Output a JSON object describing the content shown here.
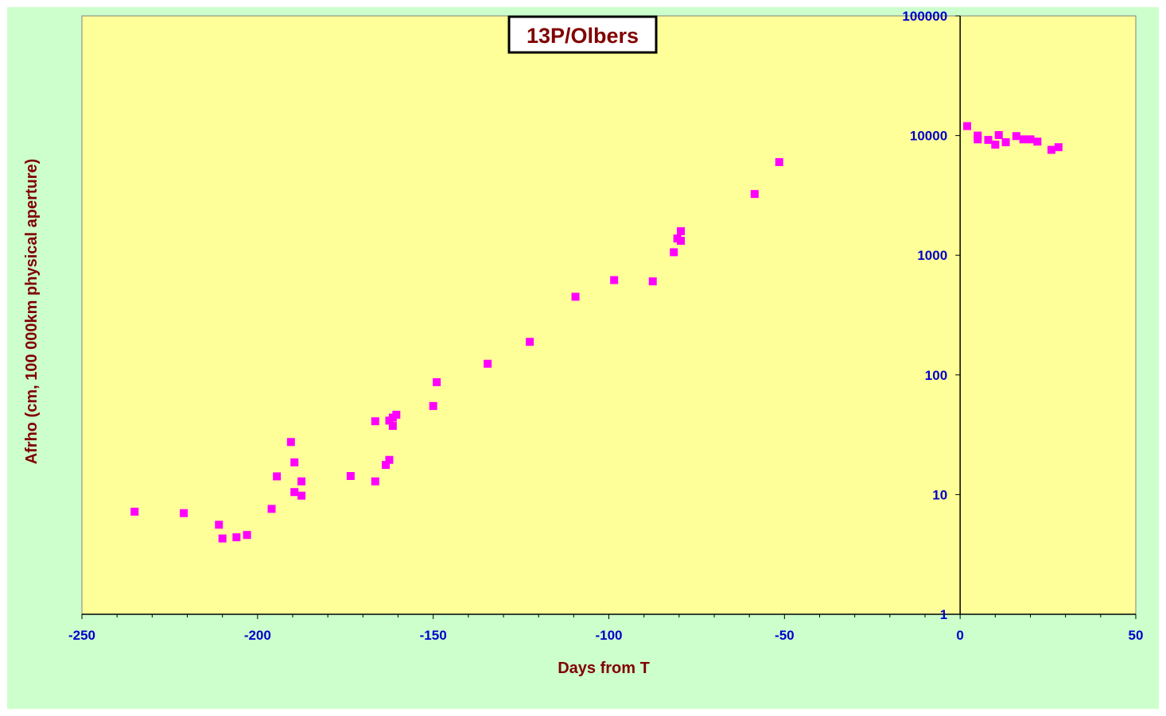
{
  "chart_data": {
    "type": "scatter",
    "title": "13P/Olbers",
    "xlabel": "Days from  T",
    "ylabel": "Afrho  (cm,  100 000km  physical  aperture)",
    "xlim": [
      -250,
      50
    ],
    "ylim": [
      1,
      100000
    ],
    "y_scale": "log",
    "x_ticks": [
      -250,
      -200,
      -150,
      -100,
      -50,
      0,
      50
    ],
    "y_ticks": [
      1,
      10,
      100,
      1000,
      10000,
      100000
    ],
    "x_tick_labels": [
      "-250",
      "-200",
      "-150",
      "-100",
      "-50",
      "0",
      "50"
    ],
    "y_tick_labels": [
      "1",
      "10",
      "100",
      "1000",
      "10000",
      "100000"
    ],
    "grid": false,
    "colors": {
      "background": "#ccffcc",
      "plot_area": "#ffff99",
      "marker": "#ff00ff",
      "tick_labels": "#0000cc",
      "axis_labels": "#800000",
      "title": "#800000"
    },
    "series": [
      {
        "marker": "square",
        "points": [
          [
            -235,
            7.2
          ],
          [
            -221,
            7.0
          ],
          [
            -211,
            5.6
          ],
          [
            -210,
            4.3
          ],
          [
            -206,
            4.4
          ],
          [
            -203,
            4.6
          ],
          [
            -196,
            7.6
          ],
          [
            -194.5,
            14.2
          ],
          [
            -190.5,
            27.5
          ],
          [
            -189.5,
            18.6
          ],
          [
            -189.5,
            10.5
          ],
          [
            -187.5,
            12.9
          ],
          [
            -187.5,
            9.8
          ],
          [
            -173.5,
            14.3
          ],
          [
            -166.5,
            41.0
          ],
          [
            -166.5,
            12.9
          ],
          [
            -163.5,
            17.7
          ],
          [
            -162.5,
            19.5
          ],
          [
            -162.5,
            41.5
          ],
          [
            -161.5,
            37.5
          ],
          [
            -161.5,
            44.0
          ],
          [
            -160.5,
            46.5
          ],
          [
            -150,
            55.0
          ],
          [
            -149,
            87.0
          ],
          [
            -134.5,
            124.0
          ],
          [
            -122.5,
            189.0
          ],
          [
            -109.5,
            450.0
          ],
          [
            -98.5,
            620.0
          ],
          [
            -87.5,
            605.0
          ],
          [
            -81.5,
            1060.0
          ],
          [
            -80.5,
            1380.0
          ],
          [
            -79.5,
            1320.0
          ],
          [
            -79.5,
            1590.0
          ],
          [
            -58.5,
            3250.0
          ],
          [
            -51.5,
            6000.0
          ],
          [
            2,
            12000.0
          ],
          [
            5,
            10000.0
          ],
          [
            5,
            9300.0
          ],
          [
            8,
            9200.0
          ],
          [
            10,
            8400.0
          ],
          [
            11,
            10100.0
          ],
          [
            13,
            8800.0
          ],
          [
            16,
            9900.0
          ],
          [
            18,
            9300.0
          ],
          [
            20,
            9300.0
          ],
          [
            22,
            8900.0
          ],
          [
            26,
            7600.0
          ],
          [
            28,
            8000.0
          ]
        ]
      }
    ]
  }
}
